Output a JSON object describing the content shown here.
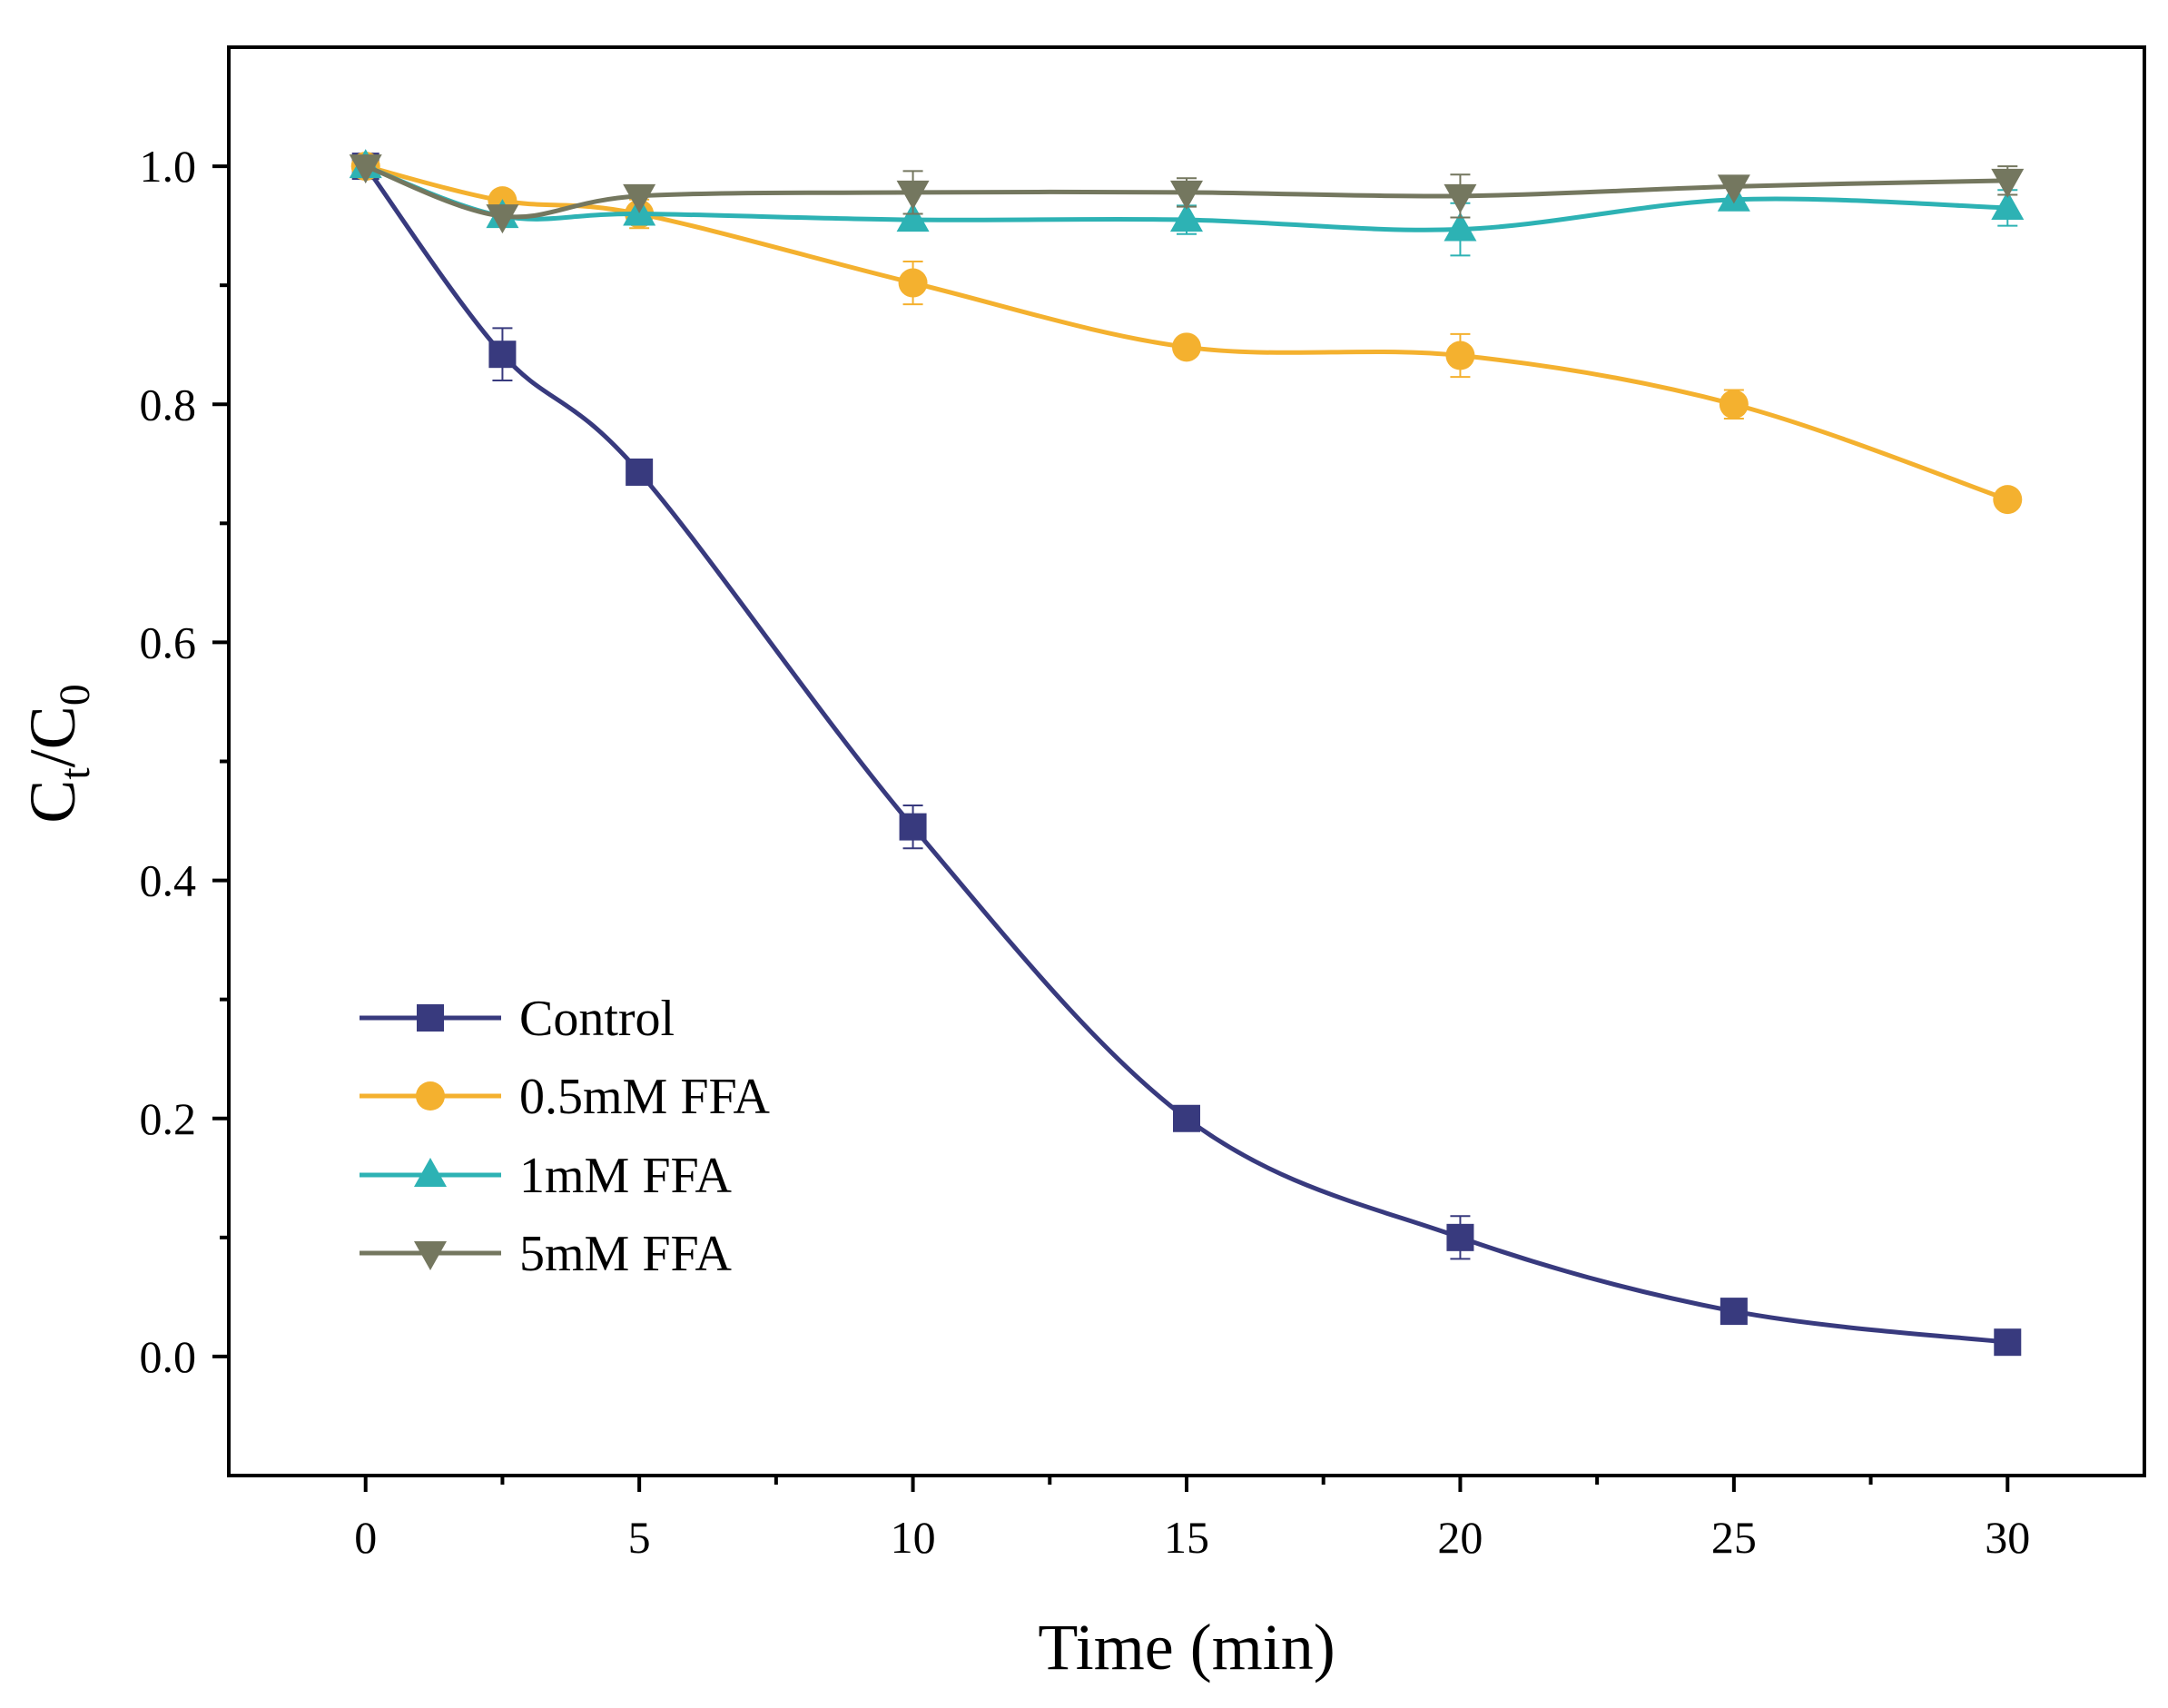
{
  "chart_data": {
    "type": "line",
    "title": "",
    "xlabel": "Time (min)",
    "ylabel": {
      "main": "C",
      "sub_t": "t",
      "slash": "/C",
      "sub_0": "0"
    },
    "xlim": [
      -2.5,
      32.5
    ],
    "ylim": [
      -0.1,
      1.1
    ],
    "xticks": [
      0,
      5,
      10,
      15,
      20,
      25,
      30
    ],
    "xtick_labels": [
      "0",
      "5",
      "10",
      "15",
      "20",
      "25",
      "30"
    ],
    "xminor": [
      2.5,
      7.5,
      12.5,
      17.5,
      22.5,
      27.5
    ],
    "yticks": [
      0.0,
      0.2,
      0.4,
      0.6,
      0.8,
      1.0
    ],
    "ytick_labels": [
      "0.0",
      "0.2",
      "0.4",
      "0.6",
      "0.8",
      "1.0"
    ],
    "yminor": [
      0.1,
      0.3,
      0.5,
      0.7,
      0.9
    ],
    "legend_position": "bottom-left",
    "x": [
      0,
      2.5,
      5,
      10,
      15,
      20,
      25,
      30
    ],
    "series": [
      {
        "name": "Control",
        "color": "#383a7e",
        "marker": "square",
        "values": [
          1.0,
          0.842,
          0.743,
          0.445,
          0.2,
          0.1,
          0.038,
          0.012
        ],
        "errors": [
          0.0,
          0.022,
          0.008,
          0.018,
          0.0,
          0.018,
          0.0,
          0.0
        ]
      },
      {
        "name": "0.5mM FFA",
        "color": "#f4b12f",
        "marker": "circle",
        "values": [
          1.0,
          0.971,
          0.96,
          0.902,
          0.848,
          0.841,
          0.8,
          0.72
        ],
        "errors": [
          0.0,
          0.008,
          0.012,
          0.018,
          0.0,
          0.018,
          0.012,
          0.0
        ]
      },
      {
        "name": "1mM FFA",
        "color": "#2db2b4",
        "marker": "triangle-up",
        "values": [
          1.0,
          0.958,
          0.96,
          0.955,
          0.955,
          0.947,
          0.972,
          0.965
        ],
        "errors": [
          0.0,
          0.0,
          0.0,
          0.0,
          0.012,
          0.022,
          0.0,
          0.015
        ]
      },
      {
        "name": "5mM FFA",
        "color": "#74775f",
        "marker": "triangle-down",
        "values": [
          1.0,
          0.958,
          0.975,
          0.978,
          0.978,
          0.975,
          0.983,
          0.988
        ],
        "errors": [
          0.0,
          0.0,
          0.0,
          0.018,
          0.012,
          0.018,
          0.0,
          0.012
        ]
      }
    ]
  }
}
